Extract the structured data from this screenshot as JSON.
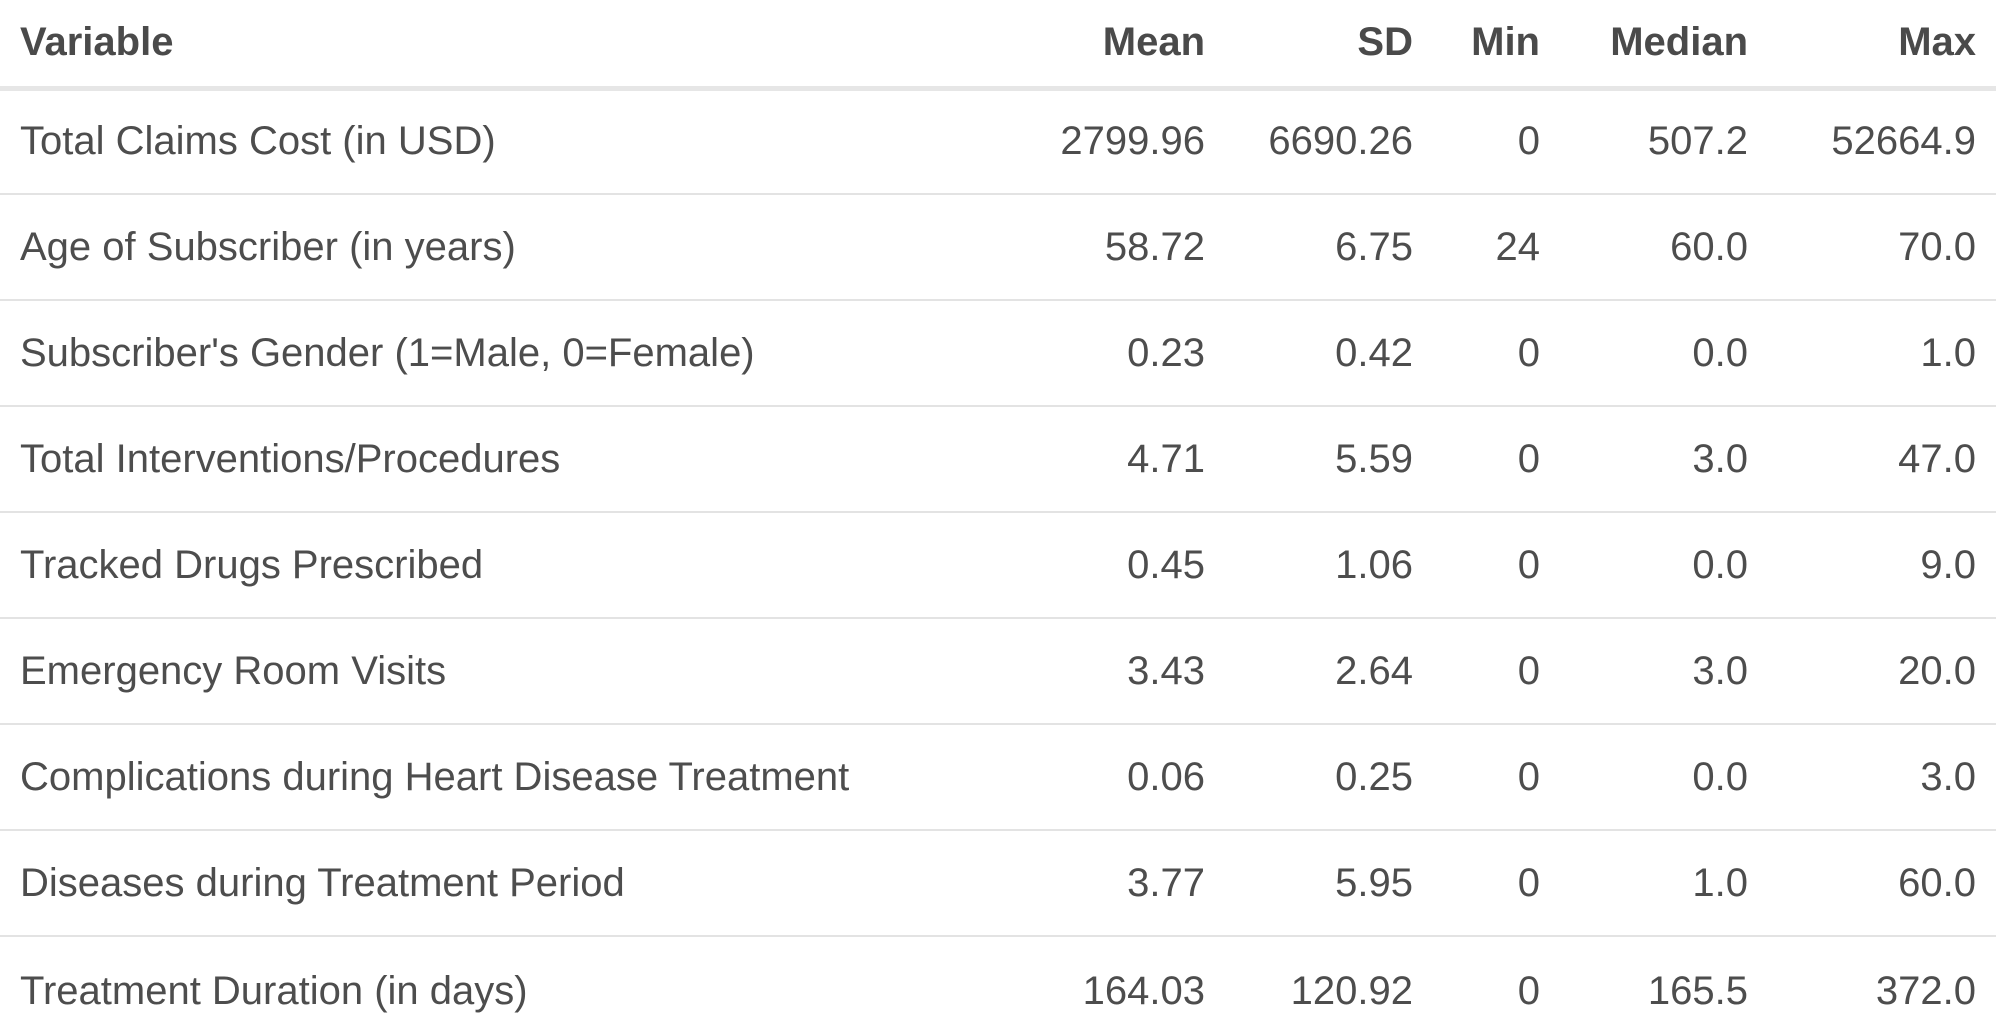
{
  "table": {
    "headers": [
      "Variable",
      "Mean",
      "SD",
      "Min",
      "Median",
      "Max"
    ],
    "rows": [
      [
        "Total Claims Cost (in USD)",
        "2799.96",
        "6690.26",
        "0",
        "507.2",
        "52664.9"
      ],
      [
        "Age of Subscriber (in years)",
        "58.72",
        "6.75",
        "24",
        "60.0",
        "70.0"
      ],
      [
        "Subscriber's Gender (1=Male, 0=Female)",
        "0.23",
        "0.42",
        "0",
        "0.0",
        "1.0"
      ],
      [
        "Total Interventions/Procedures",
        "4.71",
        "5.59",
        "0",
        "3.0",
        "47.0"
      ],
      [
        "Tracked Drugs Prescribed",
        "0.45",
        "1.06",
        "0",
        "0.0",
        "9.0"
      ],
      [
        "Emergency Room Visits",
        "3.43",
        "2.64",
        "0",
        "3.0",
        "20.0"
      ],
      [
        "Complications during Heart Disease Treatment",
        "0.06",
        "0.25",
        "0",
        "0.0",
        "3.0"
      ],
      [
        "Diseases during Treatment Period",
        "3.77",
        "5.95",
        "0",
        "1.0",
        "60.0"
      ],
      [
        "Treatment Duration (in days)",
        "164.03",
        "120.92",
        "0",
        "165.5",
        "372.0"
      ]
    ]
  }
}
